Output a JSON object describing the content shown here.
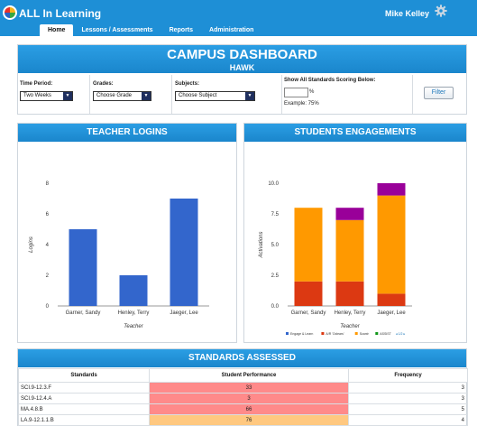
{
  "app": {
    "title": "ALL In Learning",
    "user_name": "Mike Kelley"
  },
  "nav": [
    {
      "label": "Home",
      "active": true
    },
    {
      "label": "Lessons / Assessments",
      "active": false
    },
    {
      "label": "Reports",
      "active": false
    },
    {
      "label": "Administration",
      "active": false
    }
  ],
  "campus": {
    "title": "CAMPUS DASHBOARD",
    "subtitle": "HAWK"
  },
  "filters": {
    "time_period_label": "Time Period:",
    "time_period_value": "Two Weeks",
    "grades_label": "Grades:",
    "grades_value": "Choose Grade",
    "subjects_label": "Subjects:",
    "subjects_value": "Choose Subject",
    "standards_label": "Show All Standards Scoring Below:",
    "percent_symbol": "%",
    "example": "Example: 75%",
    "filter_button": "Filter"
  },
  "teacher_logins": {
    "title": "TEACHER LOGINS",
    "chart_data": {
      "type": "bar",
      "categories": [
        "Garner, Sandy",
        "Henley, Terry",
        "Jaeger, Lee"
      ],
      "values": [
        5,
        2,
        7
      ],
      "xlabel": "Teacher",
      "ylabel": "Logins",
      "yticks": [
        "0",
        "2",
        "4",
        "6",
        "8"
      ],
      "ylim": [
        0,
        8
      ],
      "color": "#3366cc"
    }
  },
  "student_engagements": {
    "title": "STUDENTS ENGAGEMENTS",
    "chart_data": {
      "type": "bar",
      "stacked": true,
      "categories": [
        "Garner, Sandy",
        "Henley, Terry",
        "Jaeger, Lee"
      ],
      "series": [
        {
          "name": "Engage & Learn",
          "color": "#3366cc",
          "values": [
            0,
            0,
            0
          ]
        },
        {
          "name": "A/R 'Oclears'",
          "color": "#dc3912",
          "values": [
            2,
            2,
            1
          ]
        },
        {
          "name": "Scantr",
          "color": "#ff9900",
          "values": [
            6,
            5,
            8
          ]
        },
        {
          "name": "ASSIST",
          "color": "#109618",
          "values": [
            0,
            0,
            0
          ]
        },
        {
          "name": "",
          "color": "#990099",
          "values": [
            0,
            1,
            1
          ]
        }
      ],
      "legend_page": "1/2",
      "xlabel": "Teacher",
      "ylabel": "Activations",
      "yticks": [
        "0.0",
        "2.5",
        "5.0",
        "7.5",
        "10.0"
      ],
      "ylim": [
        0,
        10
      ]
    }
  },
  "standards_assessed": {
    "title": "STANDARDS ASSESSED",
    "columns": [
      "Standards",
      "Student Performance",
      "Frequency"
    ],
    "rows": [
      {
        "standard": "SCI.9-12.3.F",
        "performance": "33",
        "frequency": "3",
        "color": "#ff8a8a"
      },
      {
        "standard": "SCI.9-12.4.A",
        "performance": "3",
        "frequency": "3",
        "color": "#ff8a8a"
      },
      {
        "standard": "MA.4.8.B",
        "performance": "66",
        "frequency": "5",
        "color": "#ff8a8a"
      },
      {
        "standard": "LA.9-12.1.1.B",
        "performance": "76",
        "frequency": "4",
        "color": "#ffc880"
      }
    ]
  }
}
